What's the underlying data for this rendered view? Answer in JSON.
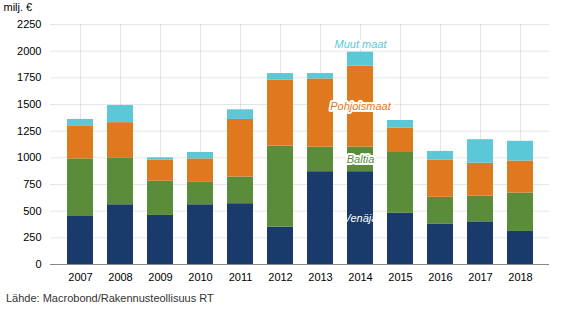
{
  "chart_data": {
    "type": "bar",
    "stacked": true,
    "categories": [
      "2007",
      "2008",
      "2009",
      "2010",
      "2011",
      "2012",
      "2013",
      "2014",
      "2015",
      "2016",
      "2017",
      "2018"
    ],
    "series": [
      {
        "name": "Venäjä",
        "color": "#1a3a6b",
        "values": [
          450,
          560,
          460,
          560,
          570,
          350,
          870,
          870,
          480,
          380,
          400,
          310
        ]
      },
      {
        "name": "Baltia",
        "color": "#5a8c3a",
        "values": [
          540,
          440,
          320,
          210,
          250,
          760,
          230,
          230,
          570,
          250,
          240,
          360
        ]
      },
      {
        "name": "Pohjoismaat",
        "color": "#e07820",
        "values": [
          310,
          330,
          200,
          220,
          540,
          620,
          640,
          760,
          230,
          350,
          310,
          300
        ]
      },
      {
        "name": "Muut maat",
        "color": "#5bc8d8",
        "values": [
          60,
          160,
          20,
          60,
          90,
          60,
          50,
          130,
          70,
          80,
          220,
          185
        ]
      }
    ],
    "ylabel": "milj. €",
    "ylim": [
      0,
      2250
    ],
    "yticks": [
      0,
      250,
      500,
      750,
      1000,
      1250,
      1500,
      1750,
      2000,
      2250
    ],
    "grid": true,
    "caption": "Lähde: Macrobond/Rakennusteollisuus RT"
  }
}
